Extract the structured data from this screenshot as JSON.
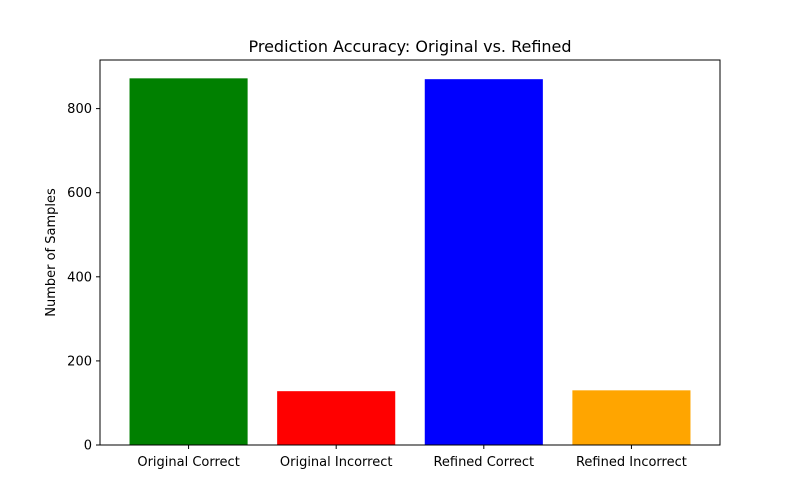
{
  "chart_data": {
    "type": "bar",
    "title": "Prediction Accuracy: Original vs. Refined",
    "xlabel": "",
    "ylabel": "Number of Samples",
    "categories": [
      "Original Correct",
      "Original Incorrect",
      "Refined Correct",
      "Refined Incorrect"
    ],
    "values": [
      872,
      128,
      870,
      130
    ],
    "colors": [
      "#008000",
      "#ff0000",
      "#0000ff",
      "#ffa500"
    ],
    "yticks": [
      0,
      200,
      400,
      600,
      800
    ],
    "ylim": [
      0,
      915.6
    ],
    "grid": false,
    "legend": "none"
  }
}
